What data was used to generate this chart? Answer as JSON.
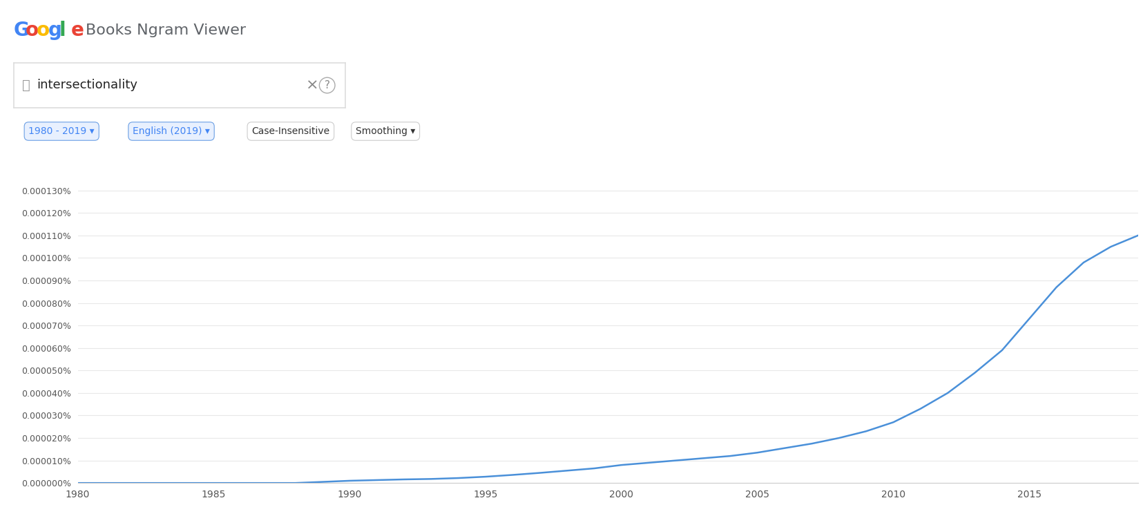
{
  "title": "Google Books Ngram Viewer",
  "search_term": "intersectionality",
  "year_range": [
    1980,
    2019
  ],
  "line_color": "#4a90d9",
  "label_color": "#4a90d9",
  "background_color": "#ffffff",
  "ytick_labels": [
    "0.000000%",
    "0.000010%",
    "0.000020%",
    "0.000030%",
    "0.000040%",
    "0.000050%",
    "0.000060%",
    "0.000070%",
    "0.000080%",
    "0.000090%",
    "0.000100%",
    "0.000110%",
    "0.000120%",
    "0.000130%"
  ],
  "ytick_values": [
    0.0,
    1e-07,
    2e-07,
    3e-07,
    4e-07,
    5e-07,
    6e-07,
    7e-07,
    8e-07,
    9e-07,
    1e-06,
    1.1e-06,
    1.2e-06,
    1.3e-06
  ],
  "ymax": 1.4e-06,
  "xtick_values": [
    1980,
    1985,
    1990,
    1995,
    2000,
    2005,
    2010,
    2015
  ],
  "years": [
    1980,
    1981,
    1982,
    1983,
    1984,
    1985,
    1986,
    1987,
    1988,
    1989,
    1990,
    1991,
    1992,
    1993,
    1994,
    1995,
    1996,
    1997,
    1998,
    1999,
    2000,
    2001,
    2002,
    2003,
    2004,
    2005,
    2006,
    2007,
    2008,
    2009,
    2010,
    2011,
    2012,
    2013,
    2014,
    2015,
    2016,
    2017,
    2018,
    2019
  ],
  "values": [
    0.0,
    0.0,
    0.0,
    0.0,
    0.0,
    0.0,
    0.0,
    0.0,
    0.0,
    5e-09,
    1e-08,
    1.3e-08,
    1.6e-08,
    1.8e-08,
    2.2e-08,
    2.8e-08,
    3.6e-08,
    4.5e-08,
    5.5e-08,
    6.5e-08,
    8e-08,
    9e-08,
    1e-07,
    1.1e-07,
    1.2e-07,
    1.35e-07,
    1.55e-07,
    1.75e-07,
    2e-07,
    2.3e-07,
    2.7e-07,
    3.3e-07,
    4e-07,
    4.9e-07,
    5.9e-07,
    7.3e-07,
    8.7e-07,
    9.8e-07,
    1.05e-06,
    1.1e-06
  ],
  "google_letters": [
    "G",
    "o",
    "o",
    "g",
    "l",
    "e"
  ],
  "google_colors": [
    "#4285F4",
    "#EA4335",
    "#FBBC05",
    "#4285F4",
    "#34A853",
    "#EA4335"
  ],
  "tag_blue_bg": "#e8f0fe",
  "tag_blue_border": "#6b9fe4",
  "tag_blue_text": "#4285f4",
  "tag_gray_bg": "#ffffff",
  "tag_gray_border": "#cccccc",
  "tag_gray_text": "#333333",
  "grid_color": "#e8e8e8",
  "spine_color": "#cccccc",
  "tick_color": "#555555"
}
